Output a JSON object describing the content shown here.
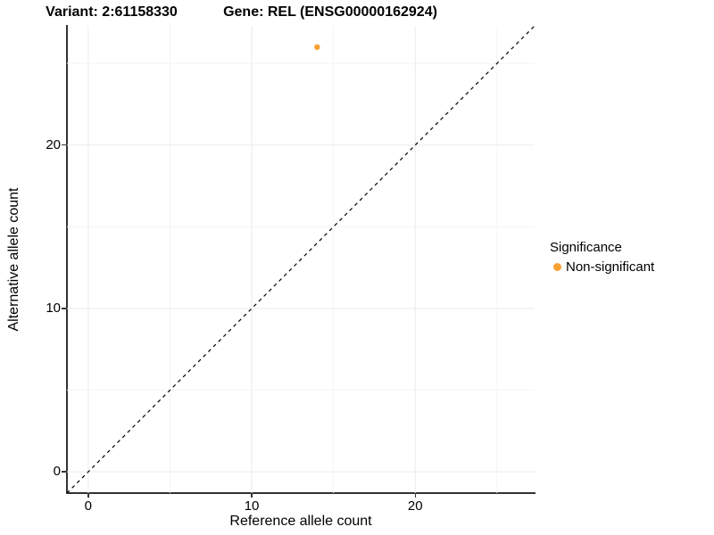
{
  "titles": {
    "variant": "Variant: 2:61158330",
    "gene": "Gene: REL (ENSG00000162924)"
  },
  "axes": {
    "x": {
      "label": "Reference allele count"
    },
    "y": {
      "label": "Alternative allele count"
    }
  },
  "legend": {
    "title": "Significance",
    "items": [
      {
        "label": "Non-significant",
        "color": "#F9A030"
      }
    ]
  },
  "colors": {
    "axis_line": "#333333",
    "grid_major": "#ebebeb",
    "grid_minor": "#f4f4f4",
    "identity_line": "#000000",
    "point": "#F9A030"
  },
  "chart_data": {
    "type": "scatter",
    "title": "Variant: 2:61158330  |  Gene: REL (ENSG00000162924)",
    "xlabel": "Reference allele count",
    "ylabel": "Alternative allele count",
    "xlim": [
      -1.3,
      27.3
    ],
    "ylim": [
      -1.3,
      27.3
    ],
    "x_ticks": [
      0,
      10,
      20
    ],
    "y_ticks": [
      0,
      10,
      20
    ],
    "x_minor_ticks": [
      5,
      15,
      25
    ],
    "y_minor_ticks": [
      5,
      15,
      25
    ],
    "grid": true,
    "legend_position": "right",
    "series": [
      {
        "name": "Non-significant",
        "color": "#F9A030",
        "points": [
          {
            "x": 14,
            "y": 26
          }
        ]
      }
    ],
    "reference_line": {
      "type": "identity",
      "slope": 1,
      "intercept": 0,
      "style": "dashed",
      "color": "#000000"
    }
  }
}
